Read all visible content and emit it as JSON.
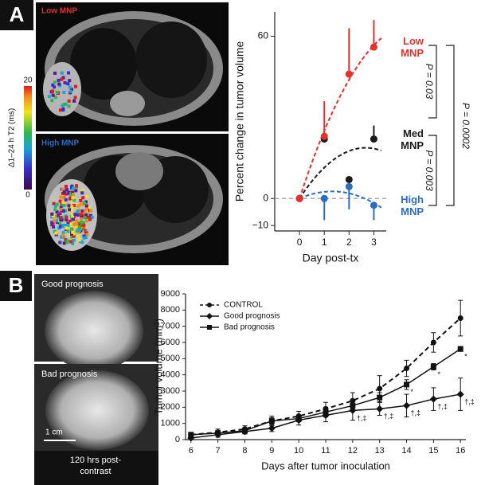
{
  "panel_a": {
    "label": "A",
    "images": [
      {
        "label": "Low MNP"
      },
      {
        "label": "High MNP"
      }
    ],
    "colorbar": {
      "title": "Δ1–24 h T2 (ms)",
      "max": 20,
      "min": 0
    },
    "p_values": [
      "P = 0.03",
      "P = 0.003",
      "P = 0.0002"
    ]
  },
  "panel_b": {
    "label": "B",
    "images": [
      {
        "label": "Good prognosis"
      },
      {
        "label": "Bad prognosis"
      }
    ],
    "scale_bar": "1 cm",
    "caption": "120 hrs post-contrast"
  },
  "chart_data": [
    {
      "type": "scatter",
      "xlabel": "Day post-tx",
      "ylabel": "Percent change in tumor volume",
      "x": [
        0,
        1,
        2,
        3
      ],
      "xlim": [
        -1,
        3.5
      ],
      "xticks": [
        0,
        1,
        2,
        3
      ],
      "ylim": [
        -12,
        69
      ],
      "yticks": [
        {
          "value": -10,
          "label": "−10"
        },
        0,
        60
      ],
      "zero_line": true,
      "fit": "quadratic",
      "series": [
        {
          "name": "Low MNP",
          "color": "#e8302a",
          "values": [
            0,
            23,
            46,
            56
          ],
          "errors": [
            null,
            13,
            17,
            10
          ],
          "error_direction": "up"
        },
        {
          "name": "Med MNP",
          "color": "#1a1a1a",
          "values": [
            0,
            22,
            7,
            22
          ],
          "errors": [
            null,
            null,
            null,
            5
          ],
          "error_direction": "up"
        },
        {
          "name": "High MNP",
          "color": "#2a6cc4",
          "values": [
            0,
            0,
            4.4,
            -2.5
          ],
          "errors": [
            null,
            8,
            8.4,
            5.5
          ],
          "error_direction": "down"
        }
      ]
    },
    {
      "type": "line",
      "xlabel": "Days after tumor inoculation",
      "ylabel": "Tumor volume (mm³)",
      "x": [
        6,
        7,
        8,
        9,
        10,
        11,
        12,
        13,
        14,
        15,
        16
      ],
      "xlim": [
        5.8,
        16.2
      ],
      "xticks": [
        6,
        7,
        8,
        9,
        10,
        11,
        12,
        13,
        14,
        15,
        16
      ],
      "ylim": [
        0,
        9000
      ],
      "yticks": [
        0,
        1000,
        2000,
        3000,
        4000,
        5000,
        6000,
        7000,
        8000,
        9000
      ],
      "legend": "upper left",
      "series": [
        {
          "name": "CONTROL",
          "color": "#111111",
          "dash": true,
          "marker": "circle",
          "values": [
            300,
            450,
            650,
            1150,
            1450,
            1900,
            2400,
            3150,
            4400,
            6000,
            7500
          ],
          "errors": [
            150,
            200,
            200,
            300,
            300,
            400,
            500,
            800,
            500,
            600,
            1100
          ]
        },
        {
          "name": "Good prognosis",
          "color": "#111111",
          "dash": false,
          "marker": "diamond",
          "values": [
            100,
            300,
            500,
            700,
            1200,
            1500,
            1800,
            1900,
            2100,
            2500,
            2800
          ],
          "errors": [
            100,
            150,
            150,
            200,
            300,
            400,
            600,
            400,
            700,
            700,
            1000
          ],
          "point_labels": [
            null,
            null,
            null,
            null,
            null,
            null,
            "†,‡",
            "†,‡",
            "†,‡",
            "†,‡",
            "†,‡"
          ]
        },
        {
          "name": "Bad prognosis",
          "color": "#111111",
          "dash": false,
          "marker": "square",
          "values": [
            300,
            400,
            550,
            1150,
            1300,
            1700,
            2100,
            2600,
            3400,
            4500,
            5600
          ],
          "errors": [
            100,
            150,
            150,
            200,
            200,
            300,
            300,
            300,
            300,
            200,
            150
          ],
          "point_labels": [
            null,
            null,
            null,
            null,
            null,
            null,
            null,
            null,
            "*",
            "*",
            "*"
          ]
        }
      ]
    }
  ]
}
